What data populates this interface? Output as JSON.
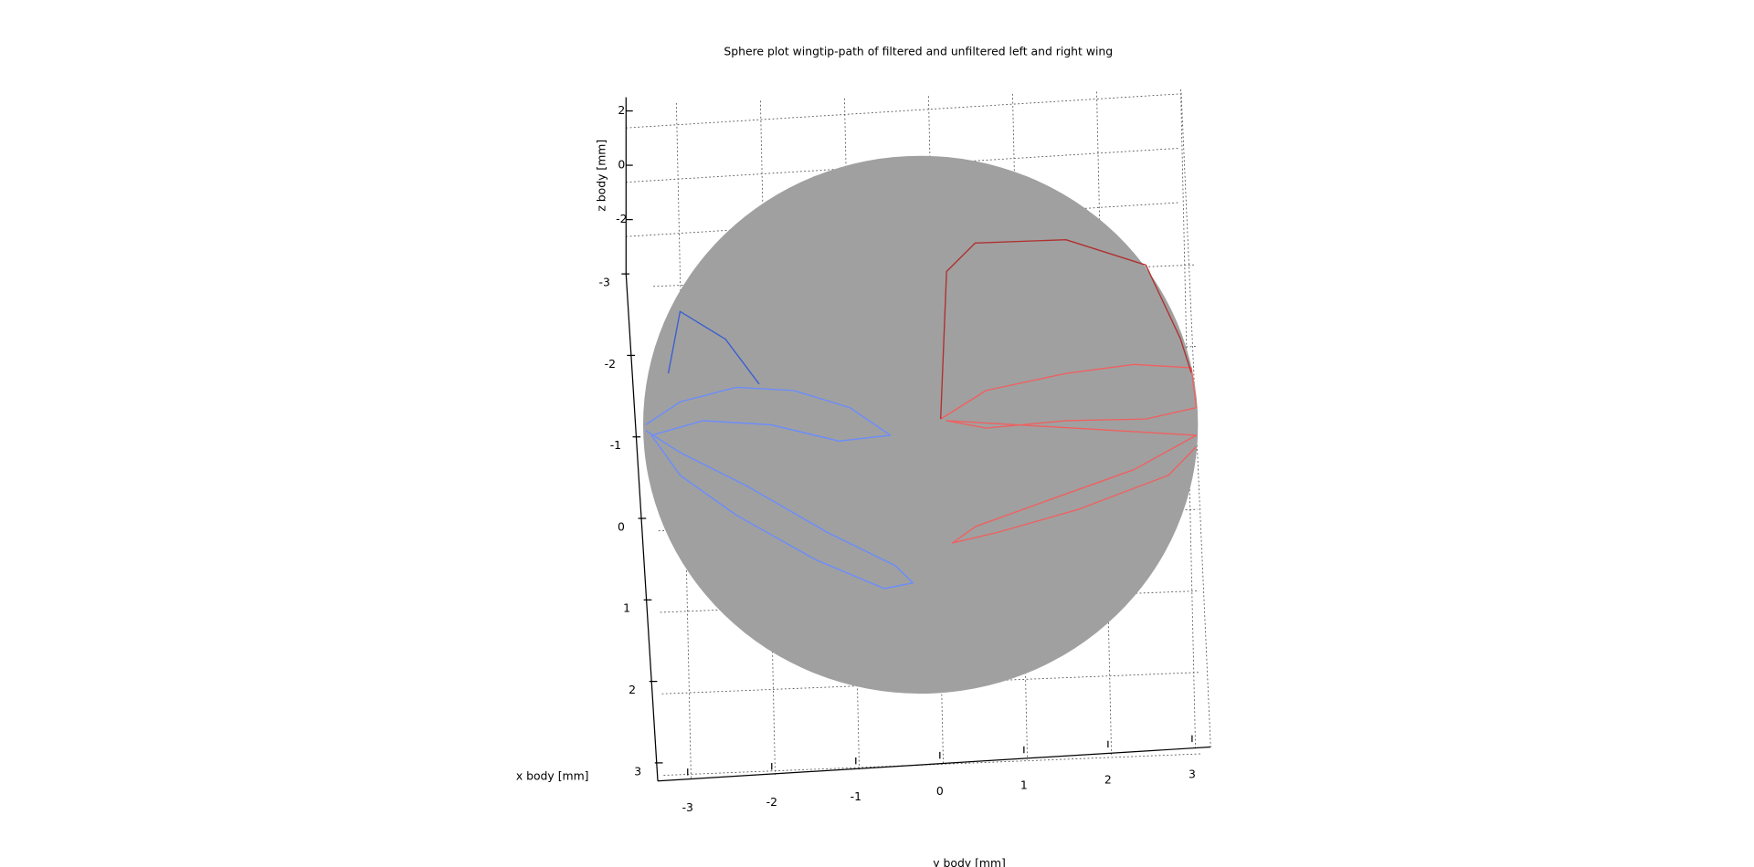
{
  "chart_data": {
    "type": "sphere3d",
    "title": "Sphere plot wingtip-path of filtered and unfiltered left and right wing",
    "xlabel": "x body [mm]",
    "ylabel": "y body [mm]",
    "zlabel": "z body [mm]",
    "xlim": [
      -3.3,
      3.1
    ],
    "ylim": [
      -3.3,
      3.3
    ],
    "zlim": [
      -4,
      2.5
    ],
    "xticks": [
      -3,
      -2,
      -1,
      0,
      1,
      2,
      3
    ],
    "yticks": [
      -3,
      -2,
      -1,
      0,
      1,
      2,
      3
    ],
    "zticks": [
      2,
      0,
      -2
    ],
    "grid": true,
    "sphere": {
      "y": -0.23,
      "x": -1.26,
      "radius": 3.3,
      "color": "#a0a0a0"
    },
    "series": [
      {
        "color": "#6a8cff",
        "y": [
          -3.5,
          -3.09,
          -2.42,
          -1.74,
          -1.07,
          -0.59,
          -1.2,
          -2.01,
          -2.82,
          -3.43,
          -3.09,
          -2.42,
          -1.47,
          -0.66,
          -0.32,
          -0.53,
          -1.34,
          -2.28,
          -3.09,
          -3.5
        ],
        "x": [
          -1.26,
          -1.54,
          -1.72,
          -1.68,
          -1.47,
          -1.13,
          -1.06,
          -1.26,
          -1.31,
          -1.13,
          -0.64,
          -0.15,
          0.4,
          0.75,
          0.68,
          0.47,
          0.06,
          -0.5,
          -0.92,
          -1.19
        ]
      },
      {
        "color": "#3a5fd0",
        "y": [
          -3.23,
          -3.09,
          -2.55,
          -2.15
        ],
        "x": [
          -1.89,
          -2.65,
          -2.31,
          -1.76
        ]
      },
      {
        "color": "#f06060",
        "y": [
          0.01,
          0.55,
          1.5,
          2.31,
          2.99,
          3.05,
          2.45,
          1.5,
          0.55,
          0.08,
          3.05,
          2.31,
          1.36,
          0.42,
          0.15,
          0.69,
          1.64,
          2.72,
          3.05
        ],
        "x": [
          -1.33,
          -1.68,
          -1.89,
          -2.0,
          -1.96,
          -1.47,
          -1.33,
          -1.31,
          -1.22,
          -1.31,
          -1.13,
          -0.71,
          -0.36,
          -0.01,
          0.19,
          0.06,
          -0.22,
          -0.64,
          -0.99
        ]
      },
      {
        "color": "#b03030",
        "y": [
          0.01,
          0.08,
          0.42,
          1.5,
          2.45,
          2.86,
          2.99
        ],
        "x": [
          -1.33,
          -3.14,
          -3.49,
          -3.53,
          -3.22,
          -2.32,
          -1.9
        ]
      }
    ]
  }
}
